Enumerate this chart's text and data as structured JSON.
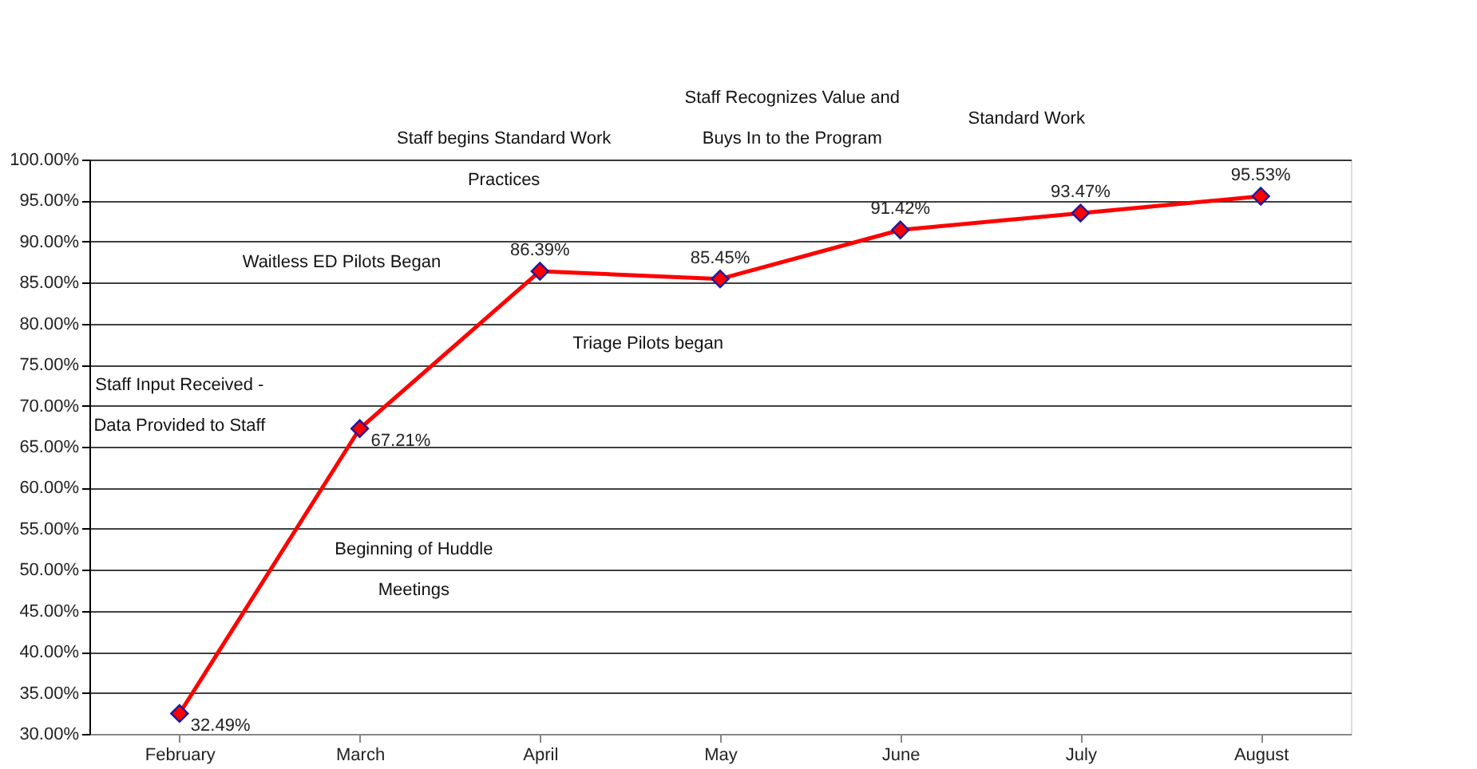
{
  "chart_data": {
    "type": "line",
    "categories": [
      "February",
      "March",
      "April",
      "May",
      "June",
      "July",
      "August"
    ],
    "series": [
      {
        "color": "#ff0000",
        "values": [
          32.49,
          67.21,
          86.39,
          85.45,
          91.42,
          93.47,
          95.53
        ],
        "value_labels": [
          "32.49%",
          "67.21%",
          "86.39%",
          "85.45%",
          "91.42%",
          "93.47%",
          "95.53%"
        ]
      }
    ],
    "ylim": [
      30,
      100
    ],
    "yticks": [
      {
        "value": 30,
        "label": "30.00%"
      },
      {
        "value": 35,
        "label": "35.00%"
      },
      {
        "value": 40,
        "label": "40.00%"
      },
      {
        "value": 45,
        "label": "45.00%"
      },
      {
        "value": 50,
        "label": "50.00%"
      },
      {
        "value": 55,
        "label": "55.00%"
      },
      {
        "value": 60,
        "label": "60.00%"
      },
      {
        "value": 65,
        "label": "65.00%"
      },
      {
        "value": 70,
        "label": "70.00%"
      },
      {
        "value": 75,
        "label": "75.00%"
      },
      {
        "value": 80,
        "label": "80.00%"
      },
      {
        "value": 85,
        "label": "85.00%"
      },
      {
        "value": 90,
        "label": "90.00%"
      },
      {
        "value": 95,
        "label": "95.00%"
      },
      {
        "value": 100,
        "label": "100.00%"
      }
    ],
    "grid": "y",
    "marker": "diamond",
    "line_style": "solid",
    "annotations": [
      "Staff Input Received - Data Provided to Staff",
      "Waitless ED Pilots Began",
      "Beginning of Huddle Meetings",
      "Staff begins Standard Work Practices",
      "Triage Pilots began",
      "Staff Recognizes Value and Buys In to the Program",
      "Standard Work"
    ]
  }
}
